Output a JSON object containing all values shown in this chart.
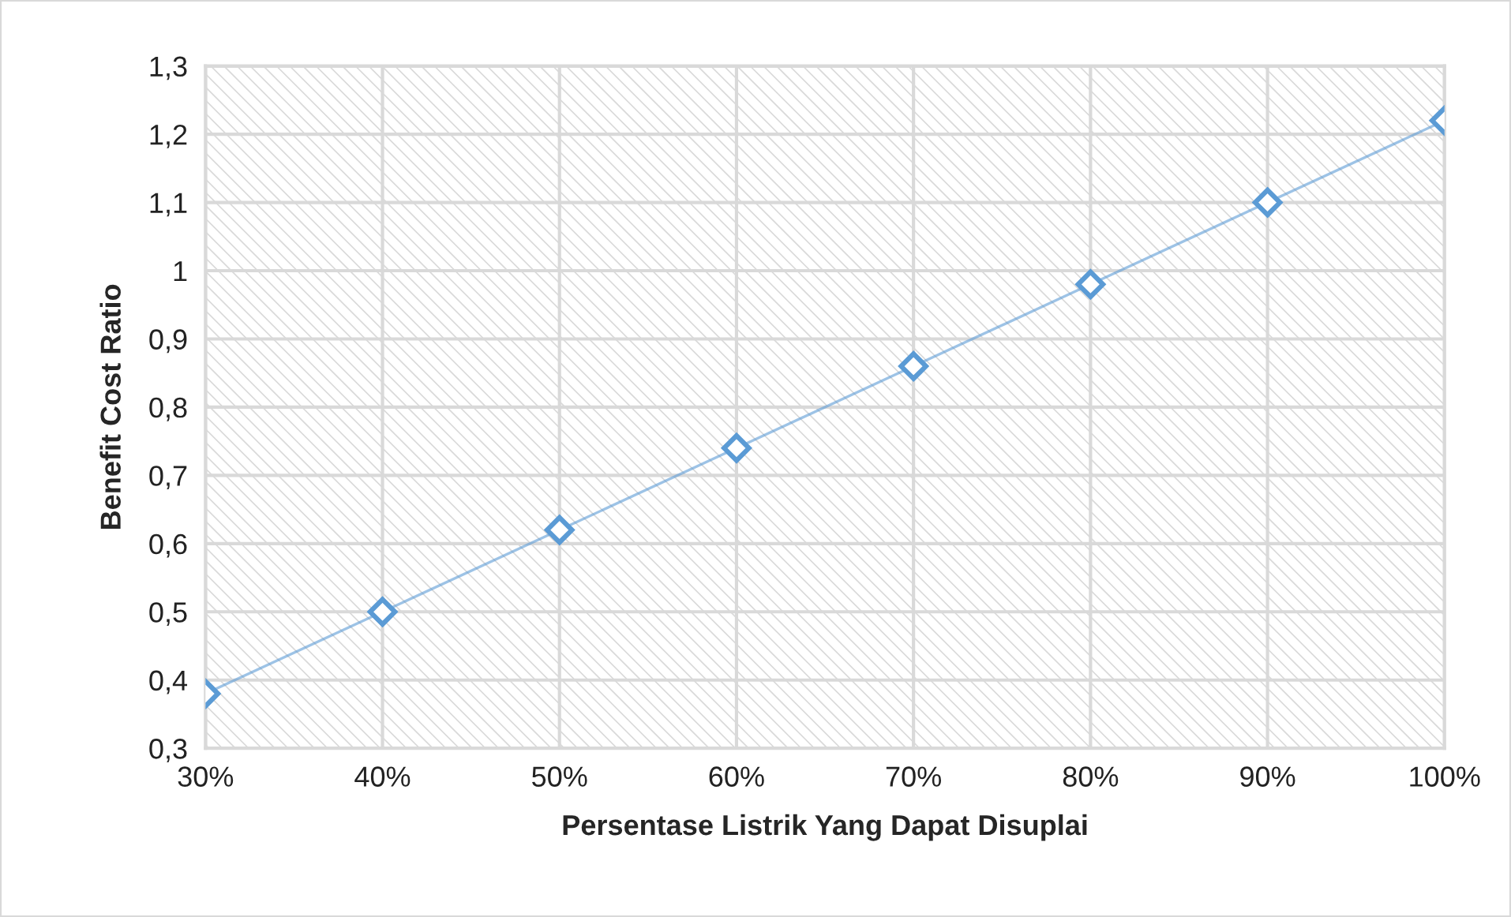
{
  "chart_data": {
    "type": "line",
    "xlabel": "Persentase Listrik Yang Dapat Disuplai",
    "ylabel": "Benefit Cost Ratio",
    "x": [
      30,
      40,
      50,
      60,
      70,
      80,
      90,
      100
    ],
    "series": [
      {
        "color": "#5b9bd5",
        "values": [
          0.38,
          0.5,
          0.62,
          0.74,
          0.86,
          0.98,
          1.1,
          1.22
        ]
      }
    ],
    "xlim": [
      30,
      100
    ],
    "xticks": [
      {
        "value": 30,
        "label": "30%"
      },
      {
        "value": 40,
        "label": "40%"
      },
      {
        "value": 50,
        "label": "50%"
      },
      {
        "value": 60,
        "label": "60%"
      },
      {
        "value": 70,
        "label": "70%"
      },
      {
        "value": 80,
        "label": "80%"
      },
      {
        "value": 90,
        "label": "90%"
      },
      {
        "value": 100,
        "label": "100%"
      }
    ],
    "ylim": [
      0.3,
      1.3
    ],
    "yticks": [
      {
        "value": 0.3,
        "label": "0,3"
      },
      {
        "value": 0.4,
        "label": "0,4"
      },
      {
        "value": 0.5,
        "label": "0,5"
      },
      {
        "value": 0.6,
        "label": "0,6"
      },
      {
        "value": 0.7,
        "label": "0,7"
      },
      {
        "value": 0.8,
        "label": "0,8"
      },
      {
        "value": 0.9,
        "label": "0,9"
      },
      1,
      {
        "value": 1.1,
        "label": "1,1"
      },
      {
        "value": 1.2,
        "label": "1,2"
      },
      {
        "value": 1.3,
        "label": "1,3"
      }
    ],
    "grid": true,
    "marker": "diamond",
    "line_style": "solid"
  }
}
